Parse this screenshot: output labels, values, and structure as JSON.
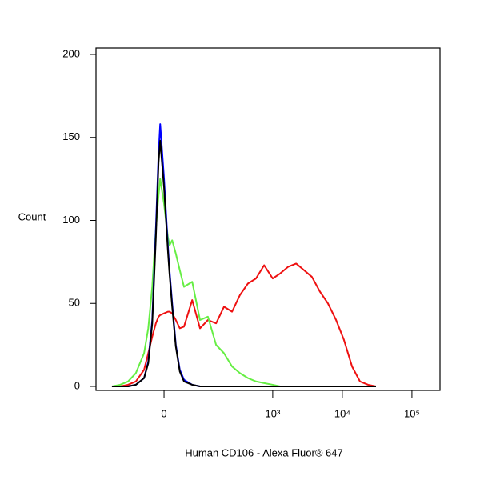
{
  "chart_data": {
    "type": "line",
    "x_label": "Human CD106 - Alexa Fluor® 647",
    "y_label": "Count",
    "xscale": "asinh",
    "xscale_width": 55,
    "xlim": [
      -258,
      253000
    ],
    "xticks": [
      0,
      {
        "value": 1000,
        "label": "10³"
      },
      {
        "value": 10000,
        "label": "10⁴"
      },
      {
        "value": 100000,
        "label": "10⁵"
      }
    ],
    "ylim": [
      0,
      200
    ],
    "yticks": [
      0,
      50,
      100,
      150,
      200
    ],
    "x": [
      -149,
      -111,
      -82,
      -59,
      -39,
      -30,
      -22,
      -15,
      -10,
      -7,
      0,
      7,
      10,
      15,
      22,
      30,
      39,
      59,
      82,
      111,
      149,
      196,
      258,
      336,
      440,
      574,
      753,
      1000,
      1276,
      1661,
      2173,
      2822,
      3658,
      4785,
      6215,
      8140,
      10560,
      13800,
      17930,
      23480,
      30470
    ],
    "series": [
      {
        "color": "#ee1111",
        "values": [
          0,
          0,
          1,
          3,
          10,
          20,
          30,
          38,
          42,
          43,
          44,
          45,
          45,
          44,
          40,
          35,
          36,
          52,
          35,
          40,
          38,
          48,
          45,
          55,
          62,
          65,
          73,
          65,
          68,
          72,
          74,
          70,
          66,
          57,
          50,
          40,
          28,
          12,
          3,
          1,
          0
        ]
      },
      {
        "color": "#66ee44",
        "values": [
          0,
          1,
          3,
          8,
          20,
          35,
          60,
          95,
          115,
          125,
          110,
          90,
          85,
          88,
          80,
          70,
          60,
          63,
          40,
          42,
          25,
          20,
          12,
          8,
          5,
          3,
          2,
          1,
          0,
          0,
          0,
          0,
          0,
          0,
          0,
          0,
          0,
          0,
          0,
          0,
          0
        ]
      },
      {
        "color": "#0000ff",
        "values": [
          0,
          0,
          0,
          1,
          5,
          15,
          40,
          95,
          140,
          158,
          125,
          85,
          70,
          50,
          25,
          10,
          4,
          1,
          0,
          0,
          0,
          0,
          0,
          0,
          0,
          0,
          0,
          0,
          0,
          0,
          0,
          0,
          0,
          0,
          0,
          0,
          0,
          0,
          0,
          0,
          0
        ]
      },
      {
        "color": "#000000",
        "values": [
          0,
          0,
          0,
          1,
          5,
          14,
          38,
          90,
          135,
          148,
          120,
          82,
          68,
          48,
          24,
          9,
          3,
          1,
          0,
          0,
          0,
          0,
          0,
          0,
          0,
          0,
          0,
          0,
          0,
          0,
          0,
          0,
          0,
          0,
          0,
          0,
          0,
          0,
          0,
          0,
          0
        ]
      }
    ]
  }
}
